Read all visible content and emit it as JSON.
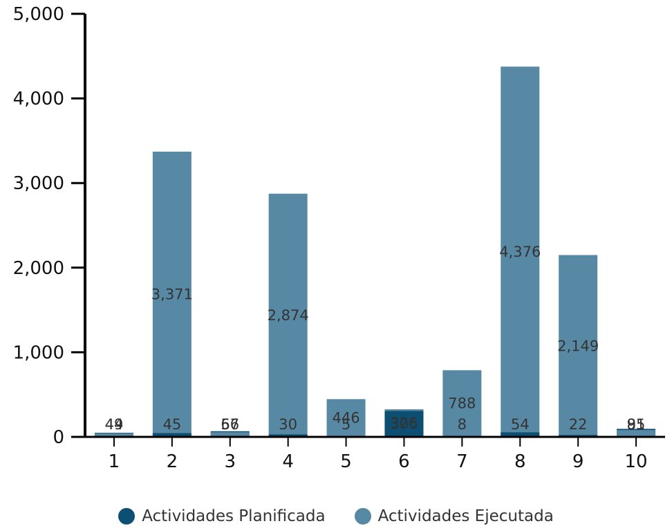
{
  "chart_data": {
    "type": "bar",
    "categories": [
      "1",
      "2",
      "3",
      "4",
      "5",
      "6",
      "7",
      "8",
      "9",
      "10"
    ],
    "series": [
      {
        "name": "Actividades Planificada",
        "color": "#0c4f72",
        "values": [
          49,
          45,
          67,
          30,
          5,
          306,
          8,
          54,
          22,
          95
        ]
      },
      {
        "name": "Actividades Ejecutada",
        "color": "#5889a4",
        "values": [
          44,
          3371,
          56,
          2874,
          446,
          326,
          788,
          4376,
          2149,
          81
        ]
      }
    ],
    "ylim": [
      0,
      5000
    ],
    "yticks": [
      "0",
      "1,000",
      "2,000",
      "3,000",
      "4,000",
      "5,000"
    ],
    "grid": false,
    "legend": "bottom"
  }
}
